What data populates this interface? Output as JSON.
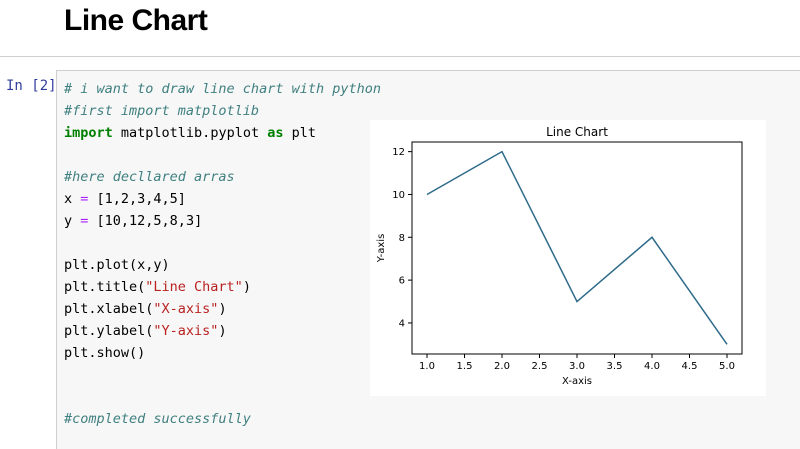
{
  "notebook": {
    "heading": "Line Chart",
    "cell": {
      "prompt": "In [2]:",
      "code_lines": [
        [
          {
            "t": "# i want to draw line chart with python",
            "c": "cm"
          }
        ],
        [
          {
            "t": "#first import matplotlib",
            "c": "cm"
          }
        ],
        [
          {
            "t": "import",
            "c": "kw"
          },
          {
            "t": " matplotlib.pyplot ",
            "c": ""
          },
          {
            "t": "as",
            "c": "kw"
          },
          {
            "t": " plt",
            "c": ""
          }
        ],
        [],
        [
          {
            "t": "#here decllared arras",
            "c": "cm"
          }
        ],
        [
          {
            "t": "x ",
            "c": ""
          },
          {
            "t": "=",
            "c": "op"
          },
          {
            "t": " [1,2,3,4,5]",
            "c": ""
          }
        ],
        [
          {
            "t": "y ",
            "c": ""
          },
          {
            "t": "=",
            "c": "op"
          },
          {
            "t": " [10,12,5,8,3]",
            "c": ""
          }
        ],
        [],
        [
          {
            "t": "plt.plot(x,y)",
            "c": ""
          }
        ],
        [
          {
            "t": "plt.title(",
            "c": ""
          },
          {
            "t": "\"Line Chart\"",
            "c": "str"
          },
          {
            "t": ")",
            "c": ""
          }
        ],
        [
          {
            "t": "plt.xlabel(",
            "c": ""
          },
          {
            "t": "\"X-axis\"",
            "c": "str"
          },
          {
            "t": ")",
            "c": ""
          }
        ],
        [
          {
            "t": "plt.ylabel(",
            "c": ""
          },
          {
            "t": "\"Y-axis\"",
            "c": "str"
          },
          {
            "t": ")",
            "c": ""
          }
        ],
        [
          {
            "t": "plt.show()",
            "c": ""
          }
        ],
        [],
        [],
        [
          {
            "t": "#completed successfully",
            "c": "cm"
          }
        ]
      ]
    }
  },
  "chart_data": {
    "type": "line",
    "title": "Line Chart",
    "xlabel": "X-axis",
    "ylabel": "Y-axis",
    "x": [
      1,
      2,
      3,
      4,
      5
    ],
    "series": [
      {
        "values": [
          10,
          12,
          5,
          8,
          3
        ],
        "color": "#2e6b8a"
      }
    ],
    "xlim": [
      0.8,
      5.2
    ],
    "ylim": [
      2.55,
      12.45
    ],
    "xticks": [
      "1.0",
      "1.5",
      "2.0",
      "2.5",
      "3.0",
      "3.5",
      "4.0",
      "4.5",
      "5.0"
    ],
    "yticks": [
      "4",
      "6",
      "8",
      "10",
      "12"
    ],
    "grid": false
  }
}
